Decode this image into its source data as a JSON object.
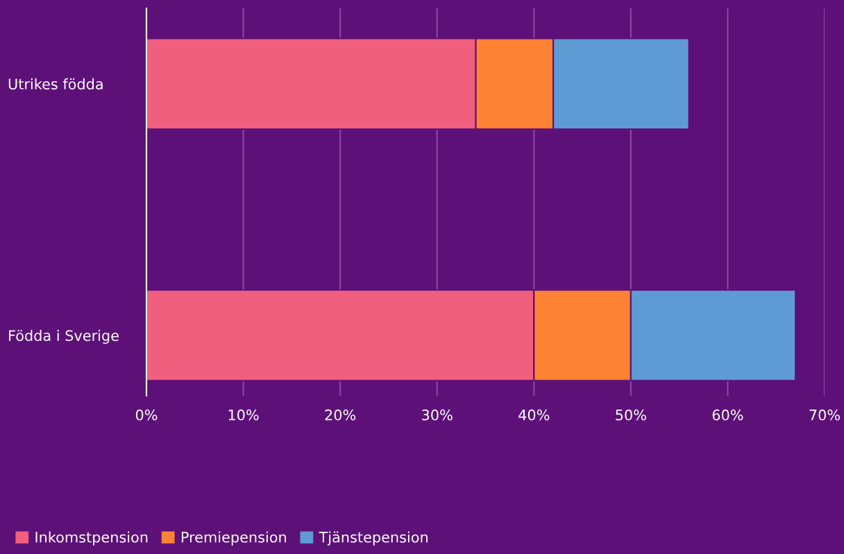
{
  "chart_data": {
    "type": "bar",
    "orientation": "horizontal",
    "stacked": true,
    "categories": [
      "Utrikes födda",
      "Födda i Sverige"
    ],
    "series": [
      {
        "name": "Inkomstpension",
        "color": "#f0607e",
        "values": [
          34,
          40
        ]
      },
      {
        "name": "Premiepension",
        "color": "#fe8233",
        "values": [
          8,
          10
        ]
      },
      {
        "name": "Tjänstepension",
        "color": "#5e9bd5",
        "values": [
          14,
          17
        ]
      }
    ],
    "xlim": [
      0,
      70
    ],
    "xticks": [
      {
        "value": 0,
        "label": "0%"
      },
      {
        "value": 10,
        "label": "10%"
      },
      {
        "value": 20,
        "label": "20%"
      },
      {
        "value": 30,
        "label": "30%"
      },
      {
        "value": 40,
        "label": "40%"
      },
      {
        "value": 50,
        "label": "50%"
      },
      {
        "value": 60,
        "label": "60%"
      },
      {
        "value": 70,
        "label": "70%"
      }
    ],
    "grid": "x",
    "legend": "bottom left"
  }
}
